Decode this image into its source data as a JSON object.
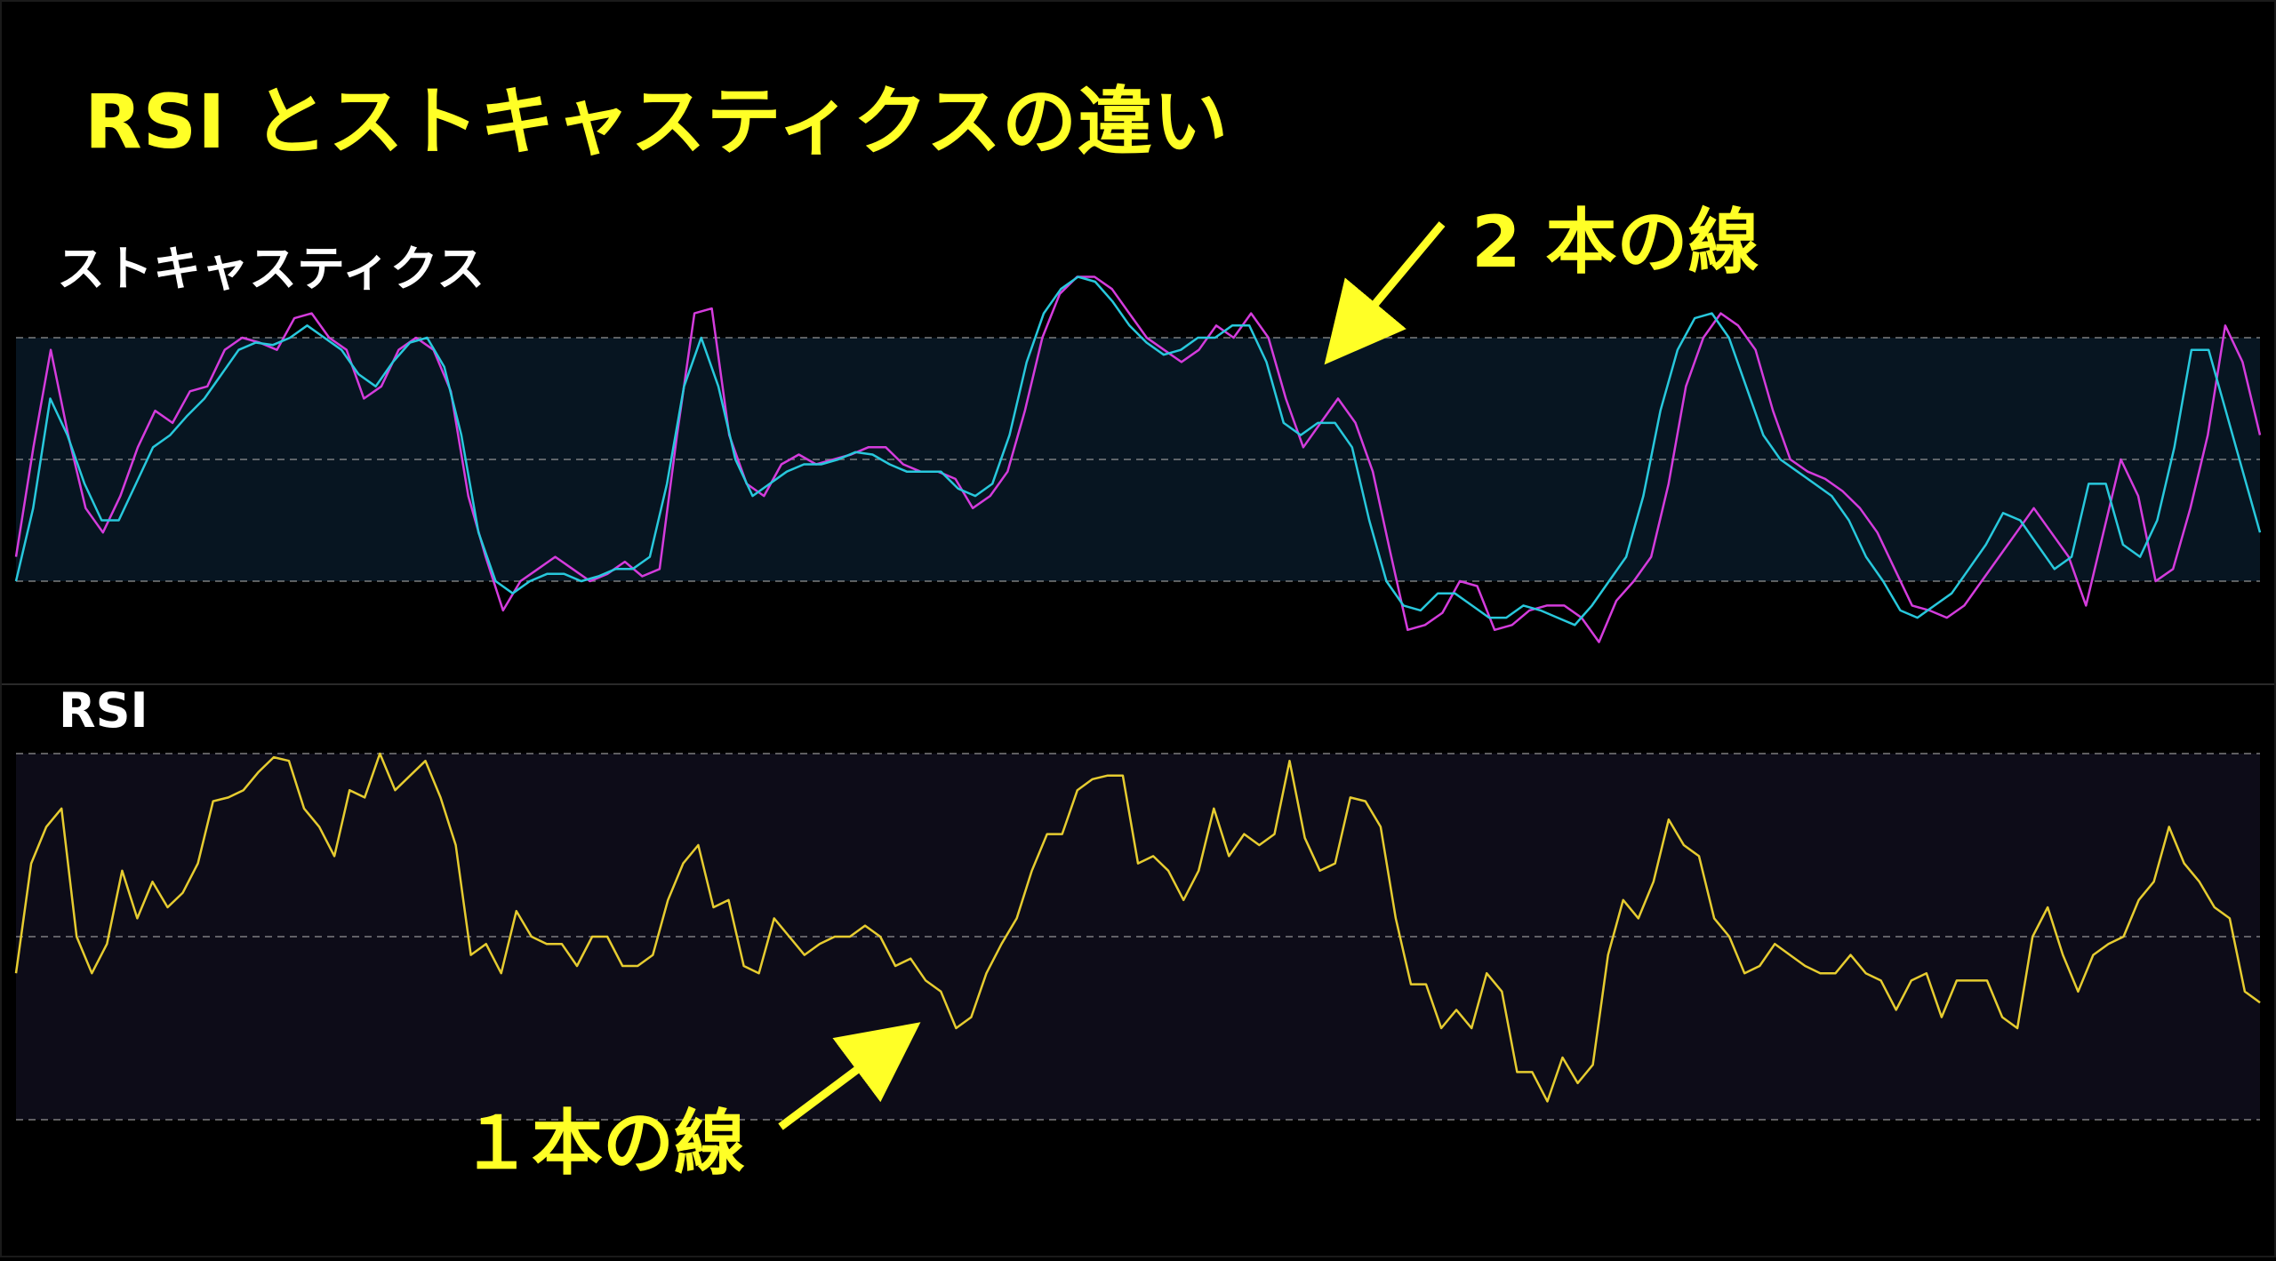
{
  "title": "RSI とストキャスティクスの違い",
  "annotations": {
    "two_lines": "2 本の線",
    "one_line": "１本の線"
  },
  "colors": {
    "background": "#000000",
    "title": "#ffff26",
    "stoch_k": "#d43cdc",
    "stoch_d": "#28c8dc",
    "rsi": "#e6cc30",
    "stoch_band": "#071521",
    "rsi_band": "#0d0c18",
    "guide_line": "#9a9a9a",
    "arrow": "#ffff26"
  },
  "chart_data": [
    {
      "type": "line",
      "title": "ストキャスティクス",
      "ylim": [
        -20,
        120
      ],
      "bands": [
        0,
        50,
        100
      ],
      "series": [
        {
          "key": "k",
          "values": [
            10,
            55,
            95,
            60,
            30,
            20,
            35,
            55,
            70,
            65,
            78,
            80,
            95,
            100,
            98,
            95,
            108,
            110,
            100,
            95,
            75,
            80,
            95,
            100,
            95,
            78,
            35,
            10,
            -12,
            0,
            5,
            10,
            5,
            0,
            3,
            8,
            2,
            5,
            60,
            110,
            112,
            60,
            40,
            35,
            48,
            52,
            48,
            50,
            52,
            55,
            55,
            48,
            45,
            45,
            42,
            30,
            35,
            45,
            70,
            100,
            118,
            125,
            125,
            120,
            110,
            100,
            95,
            90,
            95,
            105,
            100,
            110,
            100,
            75,
            55,
            65,
            75,
            65,
            45,
            12,
            -20,
            -18,
            -13,
            0,
            -2,
            -20,
            -18,
            -12,
            -10,
            -10,
            -15,
            -25,
            -8,
            0,
            10,
            40,
            80,
            100,
            110,
            105,
            95,
            70,
            50,
            45,
            42,
            37,
            30,
            20,
            5,
            -10,
            -12,
            -15,
            -10,
            0,
            10,
            20,
            30,
            20,
            10,
            -10,
            20,
            50,
            35,
            0,
            5,
            30,
            60,
            105,
            90,
            60
          ],
          "name": ""
        },
        {
          "key": "d",
          "values": [
            0,
            30,
            75,
            60,
            40,
            25,
            25,
            40,
            55,
            60,
            68,
            75,
            85,
            95,
            98,
            97,
            100,
            105,
            100,
            95,
            85,
            80,
            90,
            98,
            100,
            88,
            60,
            20,
            0,
            -5,
            0,
            3,
            3,
            0,
            2,
            5,
            5,
            10,
            40,
            80,
            100,
            80,
            50,
            35,
            40,
            45,
            48,
            48,
            50,
            53,
            52,
            48,
            45,
            45,
            45,
            38,
            35,
            40,
            60,
            90,
            110,
            120,
            125,
            123,
            115,
            105,
            98,
            93,
            95,
            100,
            100,
            105,
            105,
            90,
            65,
            60,
            65,
            65,
            55,
            25,
            0,
            -10,
            -12,
            -5,
            -5,
            -10,
            -15,
            -15,
            -10,
            -12,
            -15,
            -18,
            -10,
            0,
            10,
            35,
            70,
            95,
            108,
            110,
            100,
            80,
            60,
            50,
            45,
            40,
            35,
            25,
            10,
            0,
            -12,
            -15,
            -10,
            -5,
            5,
            15,
            28,
            25,
            15,
            5,
            10,
            40,
            40,
            15,
            10,
            25,
            55,
            95,
            95,
            70,
            45,
            20
          ],
          "name": ""
        }
      ]
    },
    {
      "type": "line",
      "title": "RSI",
      "ylim": [
        0,
        100
      ],
      "bands": [
        0,
        50,
        100
      ],
      "series": [
        {
          "key": "rsi",
          "values": [
            40,
            70,
            80,
            85,
            50,
            40,
            48,
            68,
            55,
            65,
            58,
            62,
            70,
            87,
            88,
            90,
            95,
            99,
            98,
            85,
            80,
            72,
            90,
            88,
            100,
            90,
            94,
            98,
            88,
            75,
            45,
            48,
            40,
            57,
            50,
            48,
            48,
            42,
            50,
            50,
            42,
            42,
            45,
            60,
            70,
            75,
            58,
            60,
            42,
            40,
            55,
            50,
            45,
            48,
            50,
            50,
            53,
            50,
            42,
            44,
            38,
            35,
            25,
            28,
            40,
            48,
            55,
            68,
            78,
            78,
            90,
            93,
            94,
            94,
            70,
            72,
            68,
            60,
            68,
            85,
            72,
            78,
            75,
            78,
            98,
            77,
            68,
            70,
            88,
            87,
            80,
            55,
            37,
            37,
            25,
            30,
            25,
            40,
            35,
            13,
            13,
            5,
            17,
            10,
            15,
            45,
            60,
            55,
            65,
            82,
            75,
            72,
            55,
            50,
            40,
            42,
            48,
            45,
            42,
            40,
            40,
            45,
            40,
            38,
            30,
            38,
            40,
            28,
            38,
            38,
            38,
            28,
            25,
            50,
            58,
            45,
            35,
            45,
            48,
            50,
            60,
            65,
            80,
            70,
            65,
            58,
            55,
            35,
            32
          ],
          "name": ""
        }
      ]
    }
  ]
}
